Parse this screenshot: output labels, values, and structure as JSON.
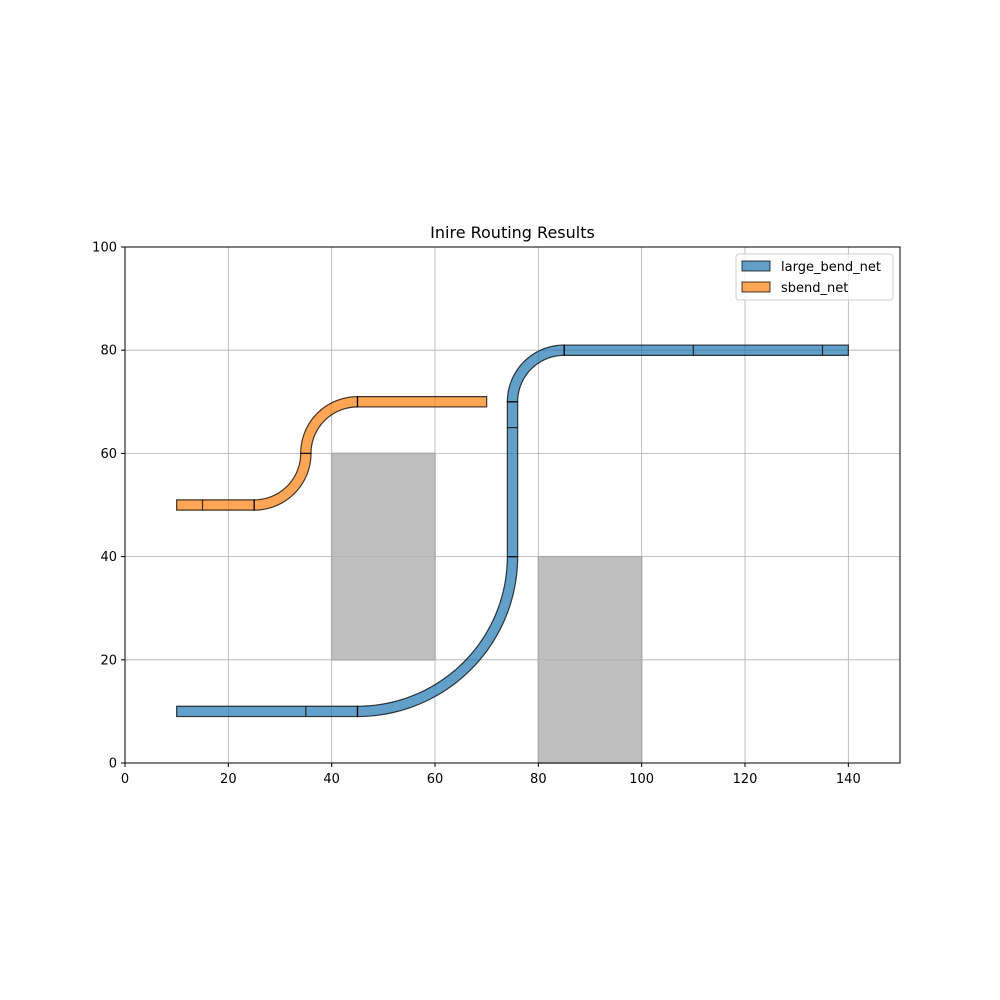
{
  "chart_data": {
    "type": "scatter",
    "title": "Inire Routing Results",
    "xlabel": "",
    "ylabel": "",
    "xlim": [
      0,
      150
    ],
    "ylim": [
      0,
      100
    ],
    "x_ticks": [
      "0",
      "20",
      "40",
      "60",
      "80",
      "100",
      "120",
      "140"
    ],
    "y_ticks": [
      "0",
      "20",
      "40",
      "60",
      "80",
      "100"
    ],
    "grid": true,
    "legend_position": "top-right",
    "obstacles": [
      {
        "x": [
          40,
          60
        ],
        "y": [
          20,
          60
        ],
        "color": "#bfbfbf"
      },
      {
        "x": [
          80,
          100
        ],
        "y": [
          0,
          40
        ],
        "color": "#bfbfbf"
      }
    ],
    "series": [
      {
        "name": "large_bend_net",
        "color": "#1f77b4",
        "width": 2,
        "path": [
          {
            "type": "line",
            "from": [
              10,
              10
            ],
            "to": [
              45,
              10
            ]
          },
          {
            "type": "arc",
            "center": [
              45,
              40
            ],
            "radius": 30,
            "start_deg": -90,
            "end_deg": 0
          },
          {
            "type": "line",
            "from": [
              75,
              40
            ],
            "to": [
              75,
              70
            ]
          },
          {
            "type": "arc",
            "center": [
              85,
              70
            ],
            "radius": 10,
            "start_deg": 180,
            "end_deg": 90
          },
          {
            "type": "line",
            "from": [
              85,
              80
            ],
            "to": [
              140,
              80
            ]
          }
        ],
        "joints": [
          [
            35,
            10
          ],
          [
            45,
            10
          ],
          [
            75,
            65
          ],
          [
            75,
            70
          ],
          [
            85,
            80
          ],
          [
            110,
            80
          ],
          [
            135,
            80
          ]
        ]
      },
      {
        "name": "sbend_net",
        "color": "#ff7f0e",
        "width": 2,
        "path": [
          {
            "type": "line",
            "from": [
              10,
              50
            ],
            "to": [
              25,
              50
            ]
          },
          {
            "type": "arc",
            "center": [
              25,
              60
            ],
            "radius": 10,
            "start_deg": -90,
            "end_deg": 0
          },
          {
            "type": "arc",
            "center": [
              45,
              60
            ],
            "radius": 10,
            "start_deg": 180,
            "end_deg": 90
          },
          {
            "type": "line",
            "from": [
              45,
              70
            ],
            "to": [
              70,
              70
            ]
          }
        ],
        "joints": [
          [
            15,
            50
          ],
          [
            25,
            50
          ],
          [
            45,
            70
          ]
        ]
      }
    ]
  }
}
